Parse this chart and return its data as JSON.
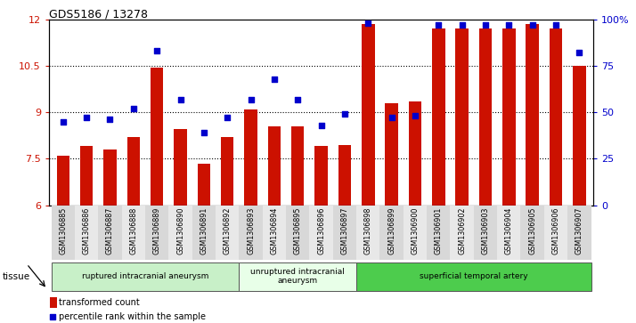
{
  "title": "GDS5186 / 13278",
  "samples": [
    "GSM1306885",
    "GSM1306886",
    "GSM1306887",
    "GSM1306888",
    "GSM1306889",
    "GSM1306890",
    "GSM1306891",
    "GSM1306892",
    "GSM1306893",
    "GSM1306894",
    "GSM1306895",
    "GSM1306896",
    "GSM1306897",
    "GSM1306898",
    "GSM1306899",
    "GSM1306900",
    "GSM1306901",
    "GSM1306902",
    "GSM1306903",
    "GSM1306904",
    "GSM1306905",
    "GSM1306906",
    "GSM1306907"
  ],
  "bar_values": [
    7.6,
    7.9,
    7.8,
    8.2,
    10.45,
    8.45,
    7.35,
    8.2,
    9.1,
    8.55,
    8.55,
    7.9,
    7.95,
    11.85,
    9.3,
    9.35,
    11.7,
    11.7,
    11.7,
    11.7,
    11.85,
    11.7,
    10.5
  ],
  "dot_values_pct": [
    45,
    47,
    46,
    52,
    83,
    57,
    39,
    47,
    57,
    68,
    57,
    43,
    49,
    98,
    47,
    48,
    97,
    97,
    97,
    97,
    97,
    97,
    82
  ],
  "groups": [
    {
      "label": "ruptured intracranial aneurysm",
      "start": 0,
      "end": 8,
      "color": "#c8f0c8"
    },
    {
      "label": "unruptured intracranial\naneurysm",
      "start": 8,
      "end": 13,
      "color": "#e8ffe8"
    },
    {
      "label": "superficial temporal artery",
      "start": 13,
      "end": 23,
      "color": "#4dcc4d"
    }
  ],
  "bar_color": "#cc1100",
  "dot_color": "#0000cc",
  "ylim_left": [
    6,
    12
  ],
  "ylim_right": [
    0,
    100
  ],
  "yticks_left": [
    6,
    7.5,
    9,
    10.5,
    12
  ],
  "yticks_right": [
    0,
    25,
    50,
    75,
    100
  ],
  "legend_bar_label": "transformed count",
  "legend_dot_label": "percentile rank within the sample",
  "tissue_label": "tissue"
}
